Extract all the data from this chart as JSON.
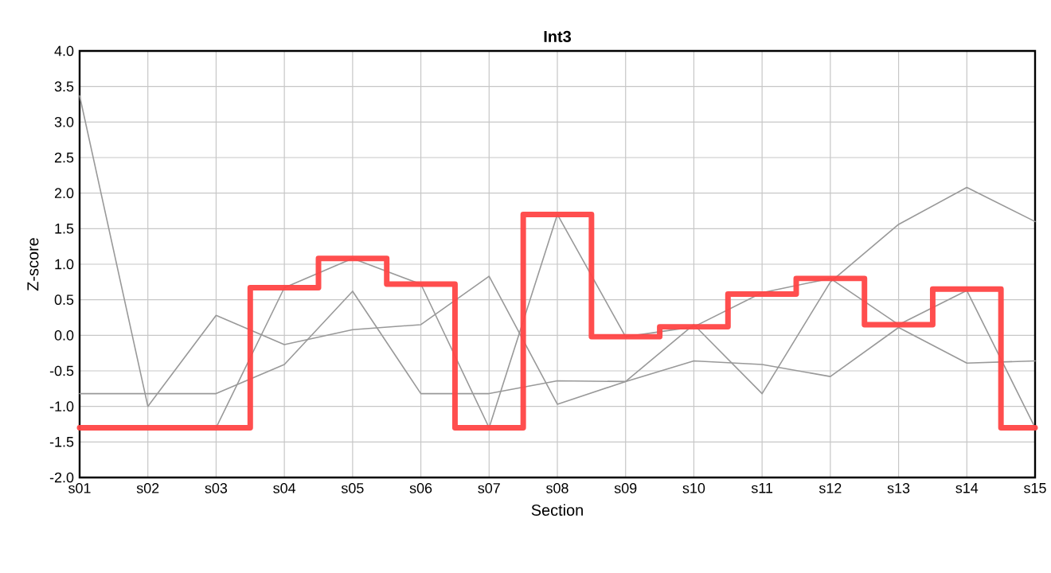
{
  "chart_data": {
    "type": "line",
    "title": "Int3",
    "xlabel": "Section",
    "ylabel": "Z-score",
    "categories": [
      "s01",
      "s02",
      "s03",
      "s04",
      "s05",
      "s06",
      "s07",
      "s08",
      "s09",
      "s10",
      "s11",
      "s12",
      "s13",
      "s14",
      "s15"
    ],
    "series": [
      {
        "color": "#999999",
        "values": [
          3.37,
          -1.0,
          0.28,
          -0.13,
          0.08,
          0.15,
          0.83,
          -0.97,
          -0.65,
          0.15,
          -0.82,
          0.75,
          1.56,
          2.08,
          1.6
        ]
      },
      {
        "color": "#999999",
        "values": [
          -0.82,
          -0.82,
          -0.82,
          -0.41,
          0.62,
          -0.82,
          -0.82,
          -0.64,
          -0.65,
          -0.36,
          -0.41,
          -0.58,
          0.11,
          -0.39,
          -0.36
        ]
      },
      {
        "color": "#999999",
        "values": [
          null,
          null,
          -1.3,
          0.67,
          1.08,
          0.72,
          -1.3,
          1.7,
          -0.02,
          0.12,
          0.6,
          0.8,
          0.15,
          0.63,
          -1.3
        ]
      },
      {
        "type": "step",
        "color": "#ff4444",
        "values": [
          -1.3,
          -1.3,
          -1.3,
          0.67,
          1.08,
          0.72,
          -1.3,
          1.7,
          -0.02,
          0.12,
          0.58,
          0.8,
          0.15,
          0.65,
          -1.3
        ]
      }
    ],
    "ylim": [
      -2.0,
      4.0
    ],
    "yticks": [
      {
        "value": -2.0,
        "label": "-2.0"
      },
      {
        "value": -1.5,
        "label": "-1.5"
      },
      {
        "value": -1.0,
        "label": "-1.0"
      },
      {
        "value": -0.5,
        "label": "-0.5"
      },
      {
        "value": 0.0,
        "label": "0.0"
      },
      {
        "value": 0.5,
        "label": "0.5"
      },
      {
        "value": 1.0,
        "label": "1.0"
      },
      {
        "value": 1.5,
        "label": "1.5"
      },
      {
        "value": 2.0,
        "label": "2.0"
      },
      {
        "value": 2.5,
        "label": "2.5"
      },
      {
        "value": 3.0,
        "label": "3.0"
      },
      {
        "value": 3.5,
        "label": "3.5"
      },
      {
        "value": 4.0,
        "label": "4.0"
      }
    ],
    "grid": true
  }
}
